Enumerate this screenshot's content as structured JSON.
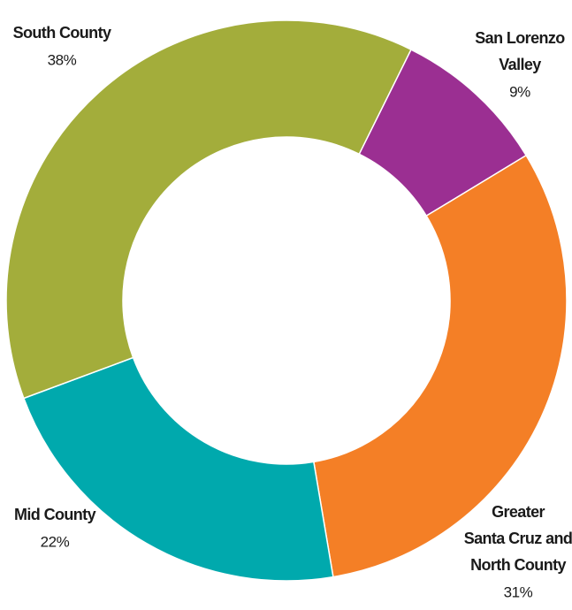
{
  "chart_data": {
    "type": "donut",
    "categories": [
      "San Lorenzo\nValley",
      "Greater\nSanta Cruz and\nNorth County",
      "Mid County",
      "South County"
    ],
    "values": [
      9,
      31,
      22,
      38
    ],
    "value_labels": [
      "9%",
      "31%",
      "22%",
      "38%"
    ],
    "colors": [
      "#9b2f92",
      "#f47f26",
      "#00a9ad",
      "#a3ad3b"
    ]
  }
}
